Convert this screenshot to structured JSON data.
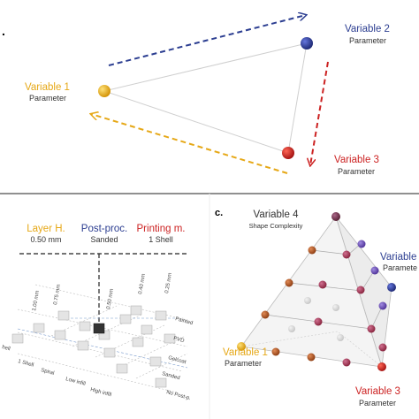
{
  "colors": {
    "var1": "#e6a817",
    "var2": "#2c3e91",
    "var3": "#cc2222",
    "var4": "#333333"
  },
  "panel_a": {
    "mark": ".",
    "var1": {
      "title": "Variable 1",
      "sub": "Parameter"
    },
    "var2": {
      "title": "Variable 2",
      "sub": "Parameter"
    },
    "var3": {
      "title": "Variable 3",
      "sub": "Parameter"
    }
  },
  "panel_b": {
    "headers": [
      {
        "title": "Layer H.",
        "value": "0.50 mm"
      },
      {
        "title": "Post-proc.",
        "value": "Sanded"
      },
      {
        "title": "Printing m.",
        "value": "1 Shell"
      }
    ],
    "layer_values": [
      "1.00 mm",
      "0.75 mm",
      "0.50 mm",
      "0.40 mm",
      "0.25 mm"
    ],
    "post_values": [
      "Painted",
      "PVD",
      "Gelcoat",
      "Sanded",
      "No Post-p."
    ],
    "print_values": [
      "hell",
      "1 Shell",
      "Spiral",
      "Low infill",
      "High infill"
    ]
  },
  "panel_c": {
    "label": "c.",
    "var4": {
      "title": "Variable 4",
      "sub": "Shape Complexity"
    },
    "var1": {
      "title": "Variable 1",
      "sub": "Parameter"
    },
    "var2": {
      "title": "Variable",
      "sub": "Paramete"
    },
    "var3": {
      "title": "Variable 3",
      "sub": "Parameter"
    }
  }
}
